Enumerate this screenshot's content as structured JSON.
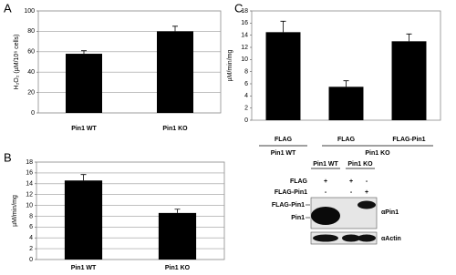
{
  "chart_data": [
    {
      "type": "bar",
      "panel": "A",
      "ylabel": "H₂O₂ (µM/10⁶ cells)",
      "categories": [
        "Pin1 WT",
        "Pin1 KO"
      ],
      "values": [
        58,
        80
      ],
      "errors": [
        3,
        5
      ],
      "color": "#000000",
      "ylim": [
        0,
        100
      ],
      "yticks": [
        0,
        20,
        40,
        60,
        80,
        100
      ],
      "grid": true
    },
    {
      "type": "bar",
      "panel": "B",
      "ylabel": "µM/min/mg",
      "categories": [
        "Pin1 WT",
        "Pin1 KO"
      ],
      "values": [
        14.6,
        8.6
      ],
      "errors": [
        1.1,
        0.7
      ],
      "color": "#000000",
      "ylim": [
        0,
        18
      ],
      "yticks": [
        0,
        2,
        4,
        6,
        8,
        10,
        12,
        14,
        16,
        18
      ],
      "grid": true
    },
    {
      "type": "bar",
      "panel": "C",
      "ylabel": "µM/min/mg",
      "categories": [
        "FLAG",
        "FLAG",
        "FLAG-Pin1"
      ],
      "values": [
        14.5,
        5.5,
        13
      ],
      "errors": [
        1.8,
        1.0,
        1.2
      ],
      "color": "#000000",
      "ylim": [
        0,
        18
      ],
      "yticks": [
        0,
        2,
        4,
        6,
        8,
        10,
        12,
        14,
        16,
        18
      ],
      "grid": false,
      "groups": [
        {
          "name": "Pin1 WT",
          "count": 1
        },
        {
          "name": "Pin1 KO",
          "count": 2
        }
      ]
    }
  ],
  "blot": {
    "groups": [
      "Pin1 WT",
      "Pin1 KO"
    ],
    "rows": [
      {
        "label": "FLAG",
        "marks": [
          "+",
          "+",
          "-"
        ]
      },
      {
        "label": "FLAG-Pin1",
        "marks": [
          "-",
          "-",
          "+"
        ]
      }
    ],
    "bands": [
      "FLAG-Pin1",
      "Pin1"
    ],
    "antibodies": [
      "αPin1",
      "αActin"
    ]
  }
}
